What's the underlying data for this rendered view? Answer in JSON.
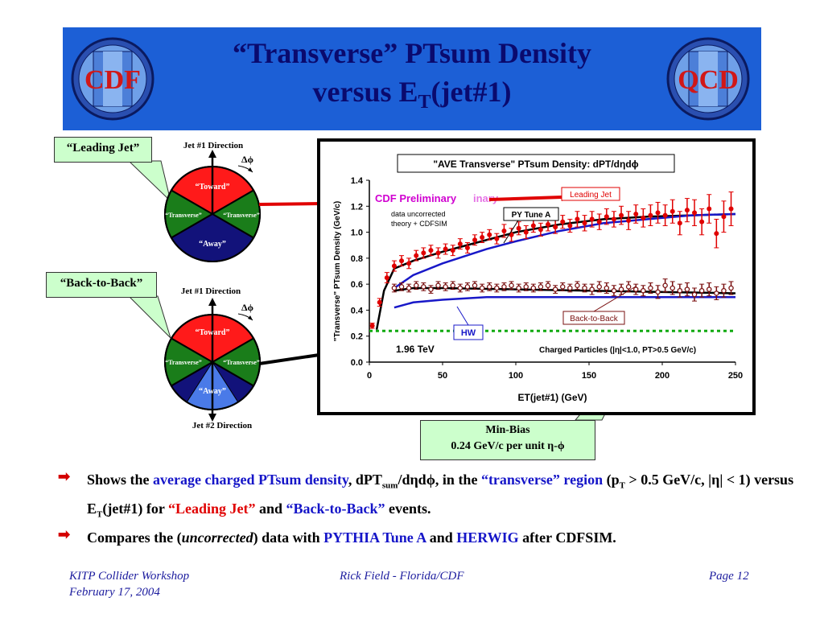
{
  "title": {
    "line1": "“Transverse” PTsum Density",
    "line2_main": "versus E",
    "line2_sub": "T",
    "line2_end": "(jet#1)"
  },
  "logos": {
    "left": "CDF",
    "right": "QCD"
  },
  "diagram_top": {
    "callout": "“Leading Jet”",
    "jet_label": "Jet #1 Direction",
    "dphi": "Δϕ",
    "toward": "“Toward”",
    "transverse_left": "“Transverse”",
    "transverse_right": "“Transverse”",
    "away": "“Away”"
  },
  "diagram_bottom": {
    "callout": "“Back-to-Back”",
    "jet_label": "Jet #1 Direction",
    "dphi": "Δϕ",
    "toward": "“Toward”",
    "transverse_left": "“Transverse”",
    "transverse_right": "“Transverse”",
    "away": "“Away”",
    "jet2_label": "Jet #2 Direction"
  },
  "minbias": {
    "line1": "Min-Bias",
    "line2": "0.24 GeV/c per unit η-ϕ"
  },
  "chart_data": {
    "type": "scatter",
    "title": "\"AVE Transverse\" PTsum Density: dPT/dηdϕ",
    "xlabel": "ET(jet#1)   (GeV)",
    "ylabel": "\"Transverse\" PTsum Density (GeV/c)",
    "xlim": [
      0,
      250
    ],
    "ylim": [
      0,
      1.4
    ],
    "xticks": [
      "0",
      "50",
      "100",
      "150",
      "200",
      "250"
    ],
    "yticks": [
      "0.0",
      "0.2",
      "0.4",
      "0.6",
      "0.8",
      "1.0",
      "1.2",
      "1.4"
    ],
    "annotations": {
      "preliminary": "CDF Preliminary",
      "preliminary_overlap": "inary",
      "uncorrected": "data uncorrected",
      "theory": "theory + CDFSIM",
      "energy": "1.96 TeV",
      "cuts": "Charged Particles (|η|<1.0, PT>0.5 GeV/c)"
    },
    "labels": {
      "leading_jet": "Leading Jet",
      "back_to_back": "Back-to-Back",
      "pytune": "PY Tune A",
      "hw": "HW"
    },
    "minbias_level": 0.24,
    "series": [
      {
        "name": "Leading Jet",
        "color": "#e00000",
        "x": [
          2,
          7,
          12,
          17,
          22,
          27,
          32,
          37,
          42,
          47,
          52,
          57,
          62,
          67,
          72,
          77,
          82,
          87,
          92,
          97,
          102,
          107,
          112,
          117,
          122,
          127,
          132,
          137,
          142,
          147,
          152,
          157,
          162,
          167,
          172,
          177,
          182,
          187,
          192,
          197,
          202,
          207,
          212,
          217,
          222,
          227,
          232,
          237,
          242,
          247
        ],
        "y": [
          0.28,
          0.46,
          0.65,
          0.74,
          0.78,
          0.76,
          0.82,
          0.84,
          0.86,
          0.84,
          0.87,
          0.86,
          0.91,
          0.88,
          0.94,
          0.96,
          0.98,
          0.95,
          1.01,
          0.98,
          1.03,
          1.0,
          1.05,
          1.02,
          1.06,
          1.04,
          1.08,
          1.05,
          1.1,
          1.07,
          1.1,
          1.08,
          1.12,
          1.1,
          1.13,
          1.09,
          1.14,
          1.11,
          1.13,
          1.15,
          1.13,
          1.16,
          1.07,
          1.17,
          1.15,
          1.08,
          1.18,
          0.99,
          1.12,
          1.18
        ],
        "err": [
          0.02,
          0.03,
          0.04,
          0.04,
          0.04,
          0.04,
          0.04,
          0.04,
          0.04,
          0.04,
          0.04,
          0.04,
          0.04,
          0.04,
          0.04,
          0.04,
          0.04,
          0.04,
          0.05,
          0.05,
          0.05,
          0.05,
          0.05,
          0.05,
          0.05,
          0.05,
          0.05,
          0.05,
          0.06,
          0.06,
          0.06,
          0.06,
          0.06,
          0.06,
          0.07,
          0.07,
          0.07,
          0.07,
          0.08,
          0.08,
          0.08,
          0.09,
          0.09,
          0.09,
          0.1,
          0.1,
          0.11,
          0.11,
          0.12,
          0.13
        ]
      },
      {
        "name": "Back-to-Back",
        "color": "#7a1010",
        "x": [
          17,
          22,
          27,
          32,
          37,
          42,
          47,
          52,
          57,
          62,
          67,
          72,
          77,
          82,
          87,
          92,
          97,
          102,
          107,
          112,
          117,
          122,
          127,
          132,
          137,
          142,
          147,
          152,
          157,
          162,
          167,
          172,
          177,
          182,
          187,
          192,
          197,
          202,
          207,
          212,
          217,
          222,
          227,
          232,
          237,
          242,
          247
        ],
        "y": [
          0.57,
          0.58,
          0.57,
          0.59,
          0.58,
          0.56,
          0.59,
          0.58,
          0.59,
          0.57,
          0.58,
          0.59,
          0.57,
          0.58,
          0.57,
          0.58,
          0.59,
          0.57,
          0.58,
          0.57,
          0.58,
          0.59,
          0.56,
          0.58,
          0.57,
          0.59,
          0.57,
          0.56,
          0.58,
          0.57,
          0.55,
          0.56,
          0.58,
          0.56,
          0.55,
          0.57,
          0.54,
          0.59,
          0.57,
          0.55,
          0.56,
          0.52,
          0.55,
          0.56,
          0.53,
          0.55,
          0.57
        ],
        "err": [
          0.03,
          0.03,
          0.03,
          0.03,
          0.03,
          0.03,
          0.03,
          0.03,
          0.03,
          0.03,
          0.03,
          0.03,
          0.03,
          0.03,
          0.03,
          0.03,
          0.03,
          0.03,
          0.03,
          0.03,
          0.03,
          0.03,
          0.03,
          0.03,
          0.03,
          0.03,
          0.03,
          0.04,
          0.04,
          0.04,
          0.04,
          0.04,
          0.04,
          0.04,
          0.04,
          0.04,
          0.05,
          0.05,
          0.05,
          0.05,
          0.05,
          0.05,
          0.05,
          0.05,
          0.05,
          0.05,
          0.05
        ]
      }
    ],
    "curves": [
      {
        "name": "PY Tune A leading",
        "color": "#000000",
        "x": [
          5,
          10,
          17,
          30,
          50,
          80,
          100,
          130,
          160,
          190,
          220,
          250
        ],
        "y": [
          0.25,
          0.55,
          0.72,
          0.78,
          0.85,
          0.94,
          1.0,
          1.06,
          1.1,
          1.12,
          1.13,
          1.14
        ]
      },
      {
        "name": "PY Tune A back-to-back",
        "color": "#000000",
        "x": [
          17,
          30,
          50,
          100,
          150,
          200,
          250
        ],
        "y": [
          0.55,
          0.57,
          0.57,
          0.56,
          0.55,
          0.54,
          0.53
        ]
      },
      {
        "name": "HW leading",
        "color": "#1818c8",
        "x": [
          17,
          30,
          50,
          80,
          100,
          130,
          160,
          190,
          220,
          250
        ],
        "y": [
          0.57,
          0.67,
          0.76,
          0.87,
          0.93,
          1.01,
          1.07,
          1.1,
          1.13,
          1.14
        ]
      },
      {
        "name": "HW back-to-back",
        "color": "#1818c8",
        "x": [
          17,
          30,
          50,
          80,
          100,
          130,
          160,
          190,
          220,
          250
        ],
        "y": [
          0.42,
          0.46,
          0.48,
          0.5,
          0.5,
          0.5,
          0.5,
          0.5,
          0.5,
          0.5
        ]
      }
    ]
  },
  "bullets": {
    "b1_a": "Shows the ",
    "b1_b": "average charged PTsum density",
    "b1_c": ", dPT",
    "b1_sub": "sum",
    "b1_d": "/dηdϕ, in the ",
    "b1_e": "“transverse” region",
    "b1_f": " (p",
    "b1_sub2": "T",
    "b1_g": " > 0.5 GeV/c, |η| < 1) versus E",
    "b1_sub3": "T",
    "b1_h": "(jet#1) for ",
    "b1_i": "“Leading Jet”",
    "b1_j": " and ",
    "b1_k": "“Back-to-Back”",
    "b1_l": " events.",
    "b2_a": "Compares the (",
    "b2_b": "uncorrected",
    "b2_c": ") data with ",
    "b2_d": "PYTHIA Tune A",
    "b2_e": " and ",
    "b2_f": "HERWIG",
    "b2_g": " after CDFSIM."
  },
  "footer": {
    "left1": "KITP Collider Workshop",
    "left2": "February 17, 2004",
    "center": "Rick Field - Florida/CDF",
    "right": "Page 12"
  }
}
